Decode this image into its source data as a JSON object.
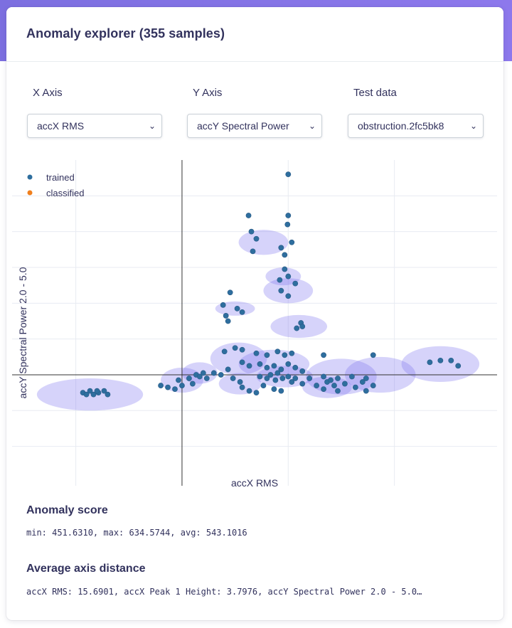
{
  "header": {
    "title": "Anomaly explorer (355 samples)"
  },
  "controls": [
    {
      "label": "X Axis",
      "value": "accX RMS"
    },
    {
      "label": "Y Axis",
      "value": "accY Spectral Power"
    },
    {
      "label": "Test data",
      "value": "obstruction.2fc5bk8"
    }
  ],
  "plot": {
    "xlabel": "accX RMS",
    "ylabel": "accY Spectral Power 2.0 - 5.0",
    "legend": [
      {
        "label": "trained",
        "color": "#2e6e9e"
      },
      {
        "label": "classified",
        "color": "#f07f1d"
      }
    ]
  },
  "chart_data": {
    "type": "scatter",
    "xlabel": "accX RMS",
    "ylabel": "accY Spectral Power 2.0 - 5.0",
    "grid": true,
    "legend_position": "top-left",
    "colors": {
      "trained": "#2e6e9e",
      "classified": "#f07f1d",
      "cluster": "#7f75ee"
    },
    "series": [
      {
        "name": "trained",
        "points": [
          [
            1.5,
            5.6
          ],
          [
            0.94,
            4.45
          ],
          [
            1.5,
            4.45
          ],
          [
            1.49,
            4.2
          ],
          [
            0.98,
            4.0
          ],
          [
            1.05,
            3.8
          ],
          [
            1.4,
            3.55
          ],
          [
            1.55,
            3.7
          ],
          [
            1.0,
            3.45
          ],
          [
            1.45,
            3.35
          ],
          [
            1.45,
            2.95
          ],
          [
            1.5,
            2.75
          ],
          [
            1.38,
            2.65
          ],
          [
            1.6,
            2.55
          ],
          [
            1.4,
            2.35
          ],
          [
            1.5,
            2.2
          ],
          [
            0.68,
            2.3
          ],
          [
            0.58,
            1.95
          ],
          [
            0.78,
            1.85
          ],
          [
            0.85,
            1.75
          ],
          [
            0.62,
            1.65
          ],
          [
            0.65,
            1.5
          ],
          [
            1.68,
            1.45
          ],
          [
            1.7,
            1.35
          ],
          [
            1.62,
            1.3
          ],
          [
            0.6,
            0.65
          ],
          [
            0.75,
            0.75
          ],
          [
            0.85,
            0.7
          ],
          [
            1.05,
            0.6
          ],
          [
            1.2,
            0.55
          ],
          [
            1.35,
            0.65
          ],
          [
            1.45,
            0.55
          ],
          [
            1.55,
            0.6
          ],
          [
            2.0,
            0.55
          ],
          [
            2.7,
            0.55
          ],
          [
            0.85,
            0.35
          ],
          [
            0.95,
            0.25
          ],
          [
            1.1,
            0.3
          ],
          [
            1.2,
            0.2
          ],
          [
            1.3,
            0.25
          ],
          [
            1.4,
            0.15
          ],
          [
            1.5,
            0.3
          ],
          [
            1.6,
            0.2
          ],
          [
            1.7,
            0.1
          ],
          [
            1.35,
            0.05
          ],
          [
            0.2,
            0.0
          ],
          [
            0.25,
            -0.05
          ],
          [
            0.3,
            0.05
          ],
          [
            0.35,
            -0.1
          ],
          [
            0.45,
            0.05
          ],
          [
            0.55,
            0.0
          ],
          [
            0.65,
            0.15
          ],
          [
            0.72,
            -0.1
          ],
          [
            1.1,
            -0.05
          ],
          [
            1.2,
            -0.1
          ],
          [
            1.25,
            0.0
          ],
          [
            1.32,
            -0.15
          ],
          [
            1.42,
            -0.1
          ],
          [
            1.5,
            -0.05
          ],
          [
            1.55,
            -0.2
          ],
          [
            1.6,
            -0.1
          ],
          [
            1.7,
            -0.25
          ],
          [
            1.8,
            -0.1
          ],
          [
            1.9,
            -0.3
          ],
          [
            2.0,
            -0.05
          ],
          [
            2.05,
            -0.2
          ],
          [
            2.1,
            -0.15
          ],
          [
            2.15,
            -0.3
          ],
          [
            2.2,
            -0.1
          ],
          [
            2.3,
            -0.25
          ],
          [
            2.4,
            -0.05
          ],
          [
            2.45,
            -0.35
          ],
          [
            2.55,
            -0.2
          ],
          [
            2.6,
            -0.1
          ],
          [
            2.7,
            -0.3
          ],
          [
            0.82,
            -0.2
          ],
          [
            0.85,
            -0.35
          ],
          [
            0.95,
            -0.45
          ],
          [
            1.05,
            -0.5
          ],
          [
            1.15,
            -0.3
          ],
          [
            1.3,
            -0.4
          ],
          [
            1.4,
            -0.45
          ],
          [
            2.0,
            -0.4
          ],
          [
            2.2,
            -0.45
          ],
          [
            2.6,
            -0.45
          ],
          [
            0.0,
            -0.3
          ],
          [
            -0.1,
            -0.4
          ],
          [
            -0.2,
            -0.35
          ],
          [
            -0.3,
            -0.3
          ],
          [
            0.1,
            -0.1
          ],
          [
            0.15,
            -0.25
          ],
          [
            -0.05,
            -0.15
          ],
          [
            3.5,
            0.35
          ],
          [
            3.65,
            0.4
          ],
          [
            3.8,
            0.4
          ],
          [
            3.9,
            0.25
          ],
          [
            -1.4,
            -0.5
          ],
          [
            -1.3,
            -0.45
          ],
          [
            -1.25,
            -0.55
          ],
          [
            -1.18,
            -0.5
          ],
          [
            -1.1,
            -0.45
          ],
          [
            -1.05,
            -0.55
          ],
          [
            -1.35,
            -0.55
          ],
          [
            -1.2,
            -0.45
          ]
        ]
      },
      {
        "name": "classified",
        "points": []
      }
    ],
    "clusters": [
      {
        "center": [
          1.15,
          3.7
        ],
        "r": [
          0.35,
          0.35
        ]
      },
      {
        "center": [
          1.43,
          2.75
        ],
        "r": [
          0.25,
          0.25
        ]
      },
      {
        "center": [
          1.5,
          2.35
        ],
        "r": [
          0.35,
          0.35
        ]
      },
      {
        "center": [
          0.75,
          1.85
        ],
        "r": [
          0.28,
          0.2
        ]
      },
      {
        "center": [
          1.65,
          1.35
        ],
        "r": [
          0.4,
          0.32
        ]
      },
      {
        "center": [
          -1.3,
          -0.55
        ],
        "r": [
          0.75,
          0.45
        ]
      },
      {
        "center": [
          0.0,
          -0.15
        ],
        "r": [
          0.3,
          0.35
        ]
      },
      {
        "center": [
          0.25,
          0.05
        ],
        "r": [
          0.25,
          0.3
        ]
      },
      {
        "center": [
          0.8,
          0.45
        ],
        "r": [
          0.4,
          0.45
        ]
      },
      {
        "center": [
          0.82,
          -0.25
        ],
        "r": [
          0.3,
          0.3
        ]
      },
      {
        "center": [
          1.3,
          0.3
        ],
        "r": [
          0.5,
          0.4
        ]
      },
      {
        "center": [
          1.45,
          -0.05
        ],
        "r": [
          0.4,
          0.3
        ]
      },
      {
        "center": [
          2.25,
          -0.05
        ],
        "r": [
          0.5,
          0.5
        ]
      },
      {
        "center": [
          2.8,
          0.0
        ],
        "r": [
          0.5,
          0.5
        ]
      },
      {
        "center": [
          2.05,
          -0.35
        ],
        "r": [
          0.35,
          0.3
        ]
      },
      {
        "center": [
          3.65,
          0.3
        ],
        "r": [
          0.55,
          0.5
        ]
      }
    ],
    "xlim": [
      -2.4,
      4.45
    ],
    "ylim": [
      -3.1,
      6.0
    ]
  },
  "score": {
    "title": "Anomaly score",
    "text": "min: 451.6310, max: 634.5744, avg: 543.1016"
  },
  "distance": {
    "title": "Average axis distance",
    "text": "accX RMS: 15.6901, accX Peak 1 Height: 3.7976, accY Spectral Power 2.0 - 5.0…"
  }
}
